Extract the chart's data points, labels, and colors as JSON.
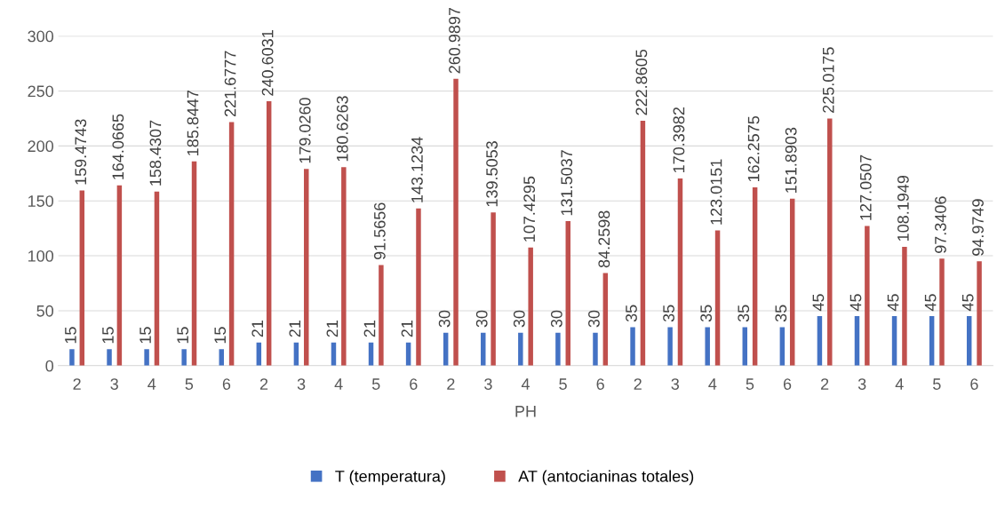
{
  "chart_data": {
    "type": "bar",
    "xlabel": "PH",
    "categories": [
      "2",
      "3",
      "4",
      "5",
      "6",
      "2",
      "3",
      "4",
      "5",
      "6",
      "2",
      "3",
      "4",
      "5",
      "6",
      "2",
      "3",
      "4",
      "5",
      "6",
      "2",
      "3",
      "4",
      "5",
      "6"
    ],
    "series": [
      {
        "name": "T (temperatura)",
        "color": "#4472c4",
        "values": [
          15,
          15,
          15,
          15,
          15,
          21,
          21,
          21,
          21,
          21,
          30,
          30,
          30,
          30,
          30,
          35,
          35,
          35,
          35,
          35,
          45,
          45,
          45,
          45,
          45
        ],
        "value_labels": [
          "15",
          "15",
          "15",
          "15",
          "15",
          "21",
          "21",
          "21",
          "21",
          "21",
          "30",
          "30",
          "30",
          "30",
          "30",
          "35",
          "35",
          "35",
          "35",
          "35",
          "45",
          "45",
          "45",
          "45",
          "45"
        ]
      },
      {
        "name": "AT (antocianinas totales)",
        "color": "#c0504d",
        "values": [
          159.4743,
          164.0665,
          158.4307,
          185.8447,
          221.6777,
          240.6031,
          179.026,
          180.6263,
          91.5656,
          143.1234,
          260.9897,
          139.5053,
          107.4295,
          131.5037,
          84.2598,
          222.8605,
          170.3982,
          123.0151,
          162.2575,
          151.8903,
          225.0175,
          127.0507,
          108.1949,
          97.3406,
          94.9749
        ],
        "value_labels": [
          "159.4743",
          "164.0665",
          "158.4307",
          "185.8447",
          "221.6777",
          "240.6031",
          "179.0260",
          "180.6263",
          "91.5656",
          "143.1234",
          "260.9897",
          "139.5053",
          "107.4295",
          "131.5037",
          "84.2598",
          "222.8605",
          "170.3982",
          "123.0151",
          "162.2575",
          "151.8903",
          "225.0175",
          "127.0507",
          "108.1949",
          "97.3406",
          "94.9749"
        ]
      }
    ],
    "ylim": [
      0,
      300
    ],
    "yticks": [
      0,
      50,
      100,
      150,
      200,
      250,
      300
    ],
    "grid": "y",
    "legend": "bottom"
  }
}
